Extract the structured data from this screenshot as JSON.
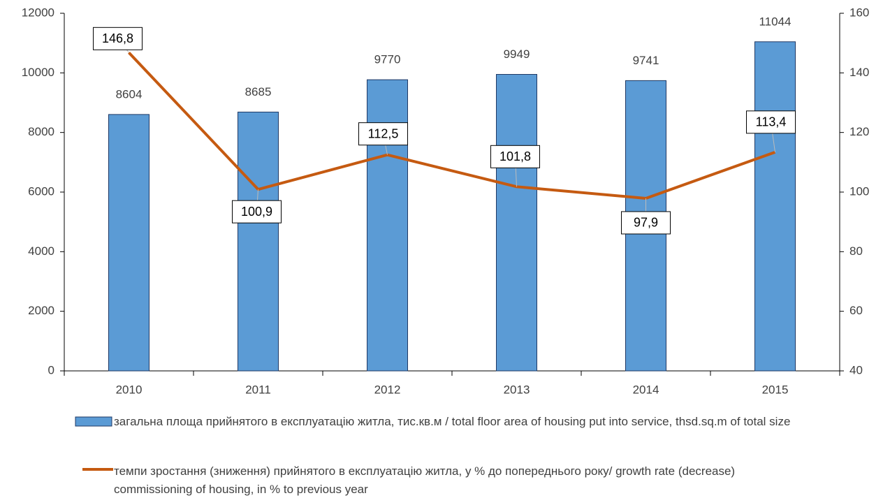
{
  "chart_data": {
    "type": "bar",
    "categories": [
      "2010",
      "2011",
      "2012",
      "2013",
      "2014",
      "2015"
    ],
    "series": [
      {
        "name": "загальна площа  прийнятого в експлуатацію житла, тис.кв.м / total floor area of housing put into service, thsd.sq.m of total size",
        "type": "bar",
        "color": "#5b9bd5",
        "values": [
          8604,
          8685,
          9770,
          9949,
          9741,
          11044
        ]
      },
      {
        "name": "темпи зростання (зниження) прийнятого в експлуатацію житла, у % до попереднього року/ growth rate (decrease)  commissioning of housing, in % to previous year",
        "type": "line",
        "axis": "y2",
        "color": "#c55a11",
        "values": [
          146.8,
          100.9,
          112.5,
          101.8,
          97.9,
          113.4
        ],
        "value_labels": [
          "146,8",
          "100,9",
          "112,5",
          "101,8",
          "97,9",
          "113,4"
        ]
      }
    ],
    "ylim": [
      0,
      12000
    ],
    "yticks": [
      0,
      2000,
      4000,
      6000,
      8000,
      10000,
      12000
    ],
    "y2lim": [
      40,
      160
    ],
    "y2ticks": [
      40,
      60,
      80,
      100,
      120,
      140,
      160
    ]
  }
}
